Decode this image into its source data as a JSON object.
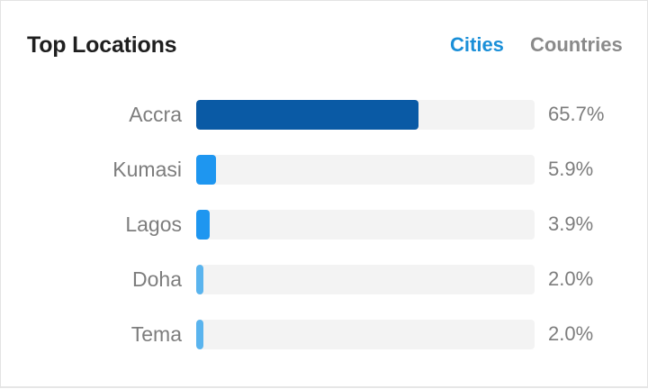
{
  "card": {
    "title": "Top Locations",
    "tabs": [
      {
        "label": "Cities",
        "active": true,
        "color": "#1a8fd8"
      },
      {
        "label": "Countries",
        "active": false,
        "color": "#8a8a8a"
      }
    ]
  },
  "locations": [
    {
      "name": "Accra",
      "value_label": "65.7%",
      "fill_fraction": 0.657,
      "bar_color": "#0a5aa5"
    },
    {
      "name": "Kumasi",
      "value_label": "5.9%",
      "fill_fraction": 0.059,
      "bar_color": "#1e96f0"
    },
    {
      "name": "Lagos",
      "value_label": "3.9%",
      "fill_fraction": 0.039,
      "bar_color": "#1e96f0"
    },
    {
      "name": "Doha",
      "value_label": "2.0%",
      "fill_fraction": 0.02,
      "bar_color": "#5ab4ee"
    },
    {
      "name": "Tema",
      "value_label": "2.0%",
      "fill_fraction": 0.02,
      "bar_color": "#5ab4ee"
    }
  ],
  "colors": {
    "track": "#f3f3f3",
    "title": "#1f1f1f",
    "muted_text": "#7d7d7d"
  }
}
